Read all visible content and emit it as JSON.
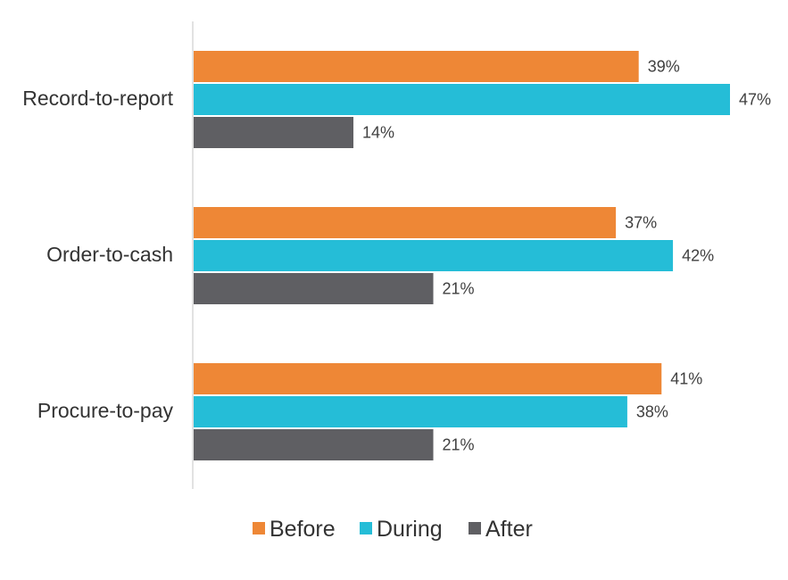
{
  "chart_data": {
    "type": "bar",
    "orientation": "horizontal",
    "categories": [
      "Record-to-report",
      "Order-to-cash",
      "Procure-to-pay"
    ],
    "series": [
      {
        "name": "Before",
        "color": "#EE8736",
        "values": [
          39,
          37,
          41
        ],
        "labels": [
          "39%",
          "37%",
          "41%"
        ]
      },
      {
        "name": "During",
        "color": "#25BDD7",
        "values": [
          47,
          42,
          38
        ],
        "labels": [
          "47%",
          "42%",
          "38%"
        ]
      },
      {
        "name": "After",
        "color": "#5F5F63",
        "values": [
          14,
          21,
          21
        ],
        "labels": [
          "14%",
          "21%",
          "21%"
        ]
      }
    ],
    "value_unit": "%",
    "xlim": [
      0,
      47
    ],
    "grid": false,
    "legend_position": "bottom"
  }
}
